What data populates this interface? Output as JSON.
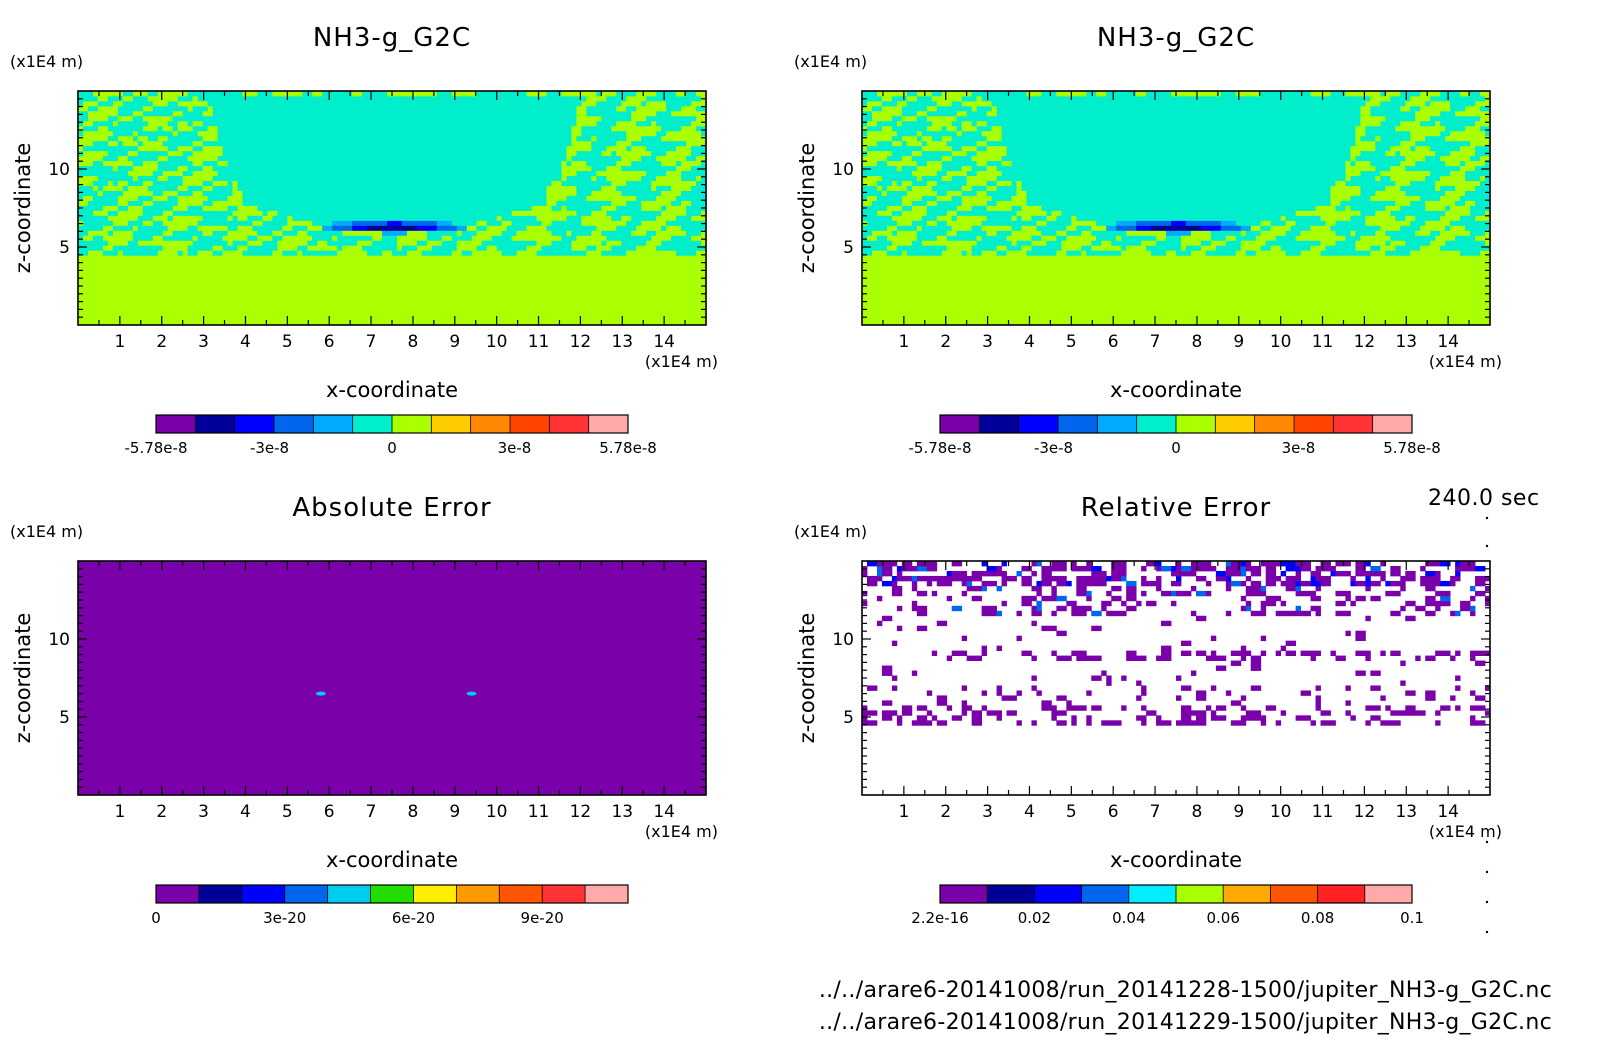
{
  "time_label": "240.0 sec",
  "files": [
    "../../arare6-20141008/run_20141228-1500/jupiter_NH3-g_G2C.nc",
    "../../arare6-20141008/run_20141229-1500/jupiter_NH3-g_G2C.nc"
  ],
  "chart_data": [
    {
      "type": "heatmap",
      "title": "NH3-g_G2C",
      "xlabel": "x-coordinate",
      "ylabel": "z-coordinate",
      "x_unit": "(x1E4 m)",
      "y_unit": "(x1E4 m)",
      "xlim": [
        0,
        15
      ],
      "ylim": [
        0,
        15
      ],
      "x_ticks": [
        "1",
        "2",
        "3",
        "4",
        "5",
        "6",
        "7",
        "8",
        "9",
        "10",
        "11",
        "12",
        "13",
        "14"
      ],
      "y_ticks": [
        "5",
        "10"
      ],
      "field": "nh3",
      "colorbar": {
        "colors": [
          "#7a00aa",
          "#000099",
          "#0000ff",
          "#0066ee",
          "#00aaff",
          "#00eecc",
          "#aaff00",
          "#ffcc00",
          "#ff8800",
          "#ff4400",
          "#ff3333",
          "#ffaaaa"
        ],
        "tick_labels": [
          "-5.78e-8",
          "-3e-8",
          "0",
          "3e-8",
          "5.78e-8"
        ],
        "range": [
          -5.78e-08,
          5.78e-08
        ]
      },
      "description_values": {
        "background_levels": [
          "0 to 1.2e-8 (yellow-green)",
          "-1.2e-8 to 0 (cyan)"
        ],
        "minimum_near": {
          "x": 7.5,
          "z": 6.3,
          "value": -5.78e-08
        }
      }
    },
    {
      "type": "heatmap",
      "title": "NH3-g_G2C",
      "xlabel": "x-coordinate",
      "ylabel": "z-coordinate",
      "x_unit": "(x1E4 m)",
      "y_unit": "(x1E4 m)",
      "xlim": [
        0,
        15
      ],
      "ylim": [
        0,
        15
      ],
      "x_ticks": [
        "1",
        "2",
        "3",
        "4",
        "5",
        "6",
        "7",
        "8",
        "9",
        "10",
        "11",
        "12",
        "13",
        "14"
      ],
      "y_ticks": [
        "5",
        "10"
      ],
      "field": "nh3",
      "colorbar": {
        "colors": [
          "#7a00aa",
          "#000099",
          "#0000ff",
          "#0066ee",
          "#00aaff",
          "#00eecc",
          "#aaff00",
          "#ffcc00",
          "#ff8800",
          "#ff4400",
          "#ff3333",
          "#ffaaaa"
        ],
        "tick_labels": [
          "-5.78e-8",
          "-3e-8",
          "0",
          "3e-8",
          "5.78e-8"
        ],
        "range": [
          -5.78e-08,
          5.78e-08
        ]
      }
    },
    {
      "type": "heatmap",
      "title": "Absolute Error",
      "xlabel": "x-coordinate",
      "ylabel": "z-coordinate",
      "x_unit": "(x1E4 m)",
      "y_unit": "(x1E4 m)",
      "xlim": [
        0,
        15
      ],
      "ylim": [
        0,
        15
      ],
      "x_ticks": [
        "1",
        "2",
        "3",
        "4",
        "5",
        "6",
        "7",
        "8",
        "9",
        "10",
        "11",
        "12",
        "13",
        "14"
      ],
      "y_ticks": [
        "5",
        "10"
      ],
      "field": "abs",
      "colorbar": {
        "colors": [
          "#7a00aa",
          "#000099",
          "#0000ff",
          "#0066ee",
          "#00ccee",
          "#22dd00",
          "#ffee00",
          "#ff9900",
          "#ff5500",
          "#ff3333",
          "#ffaaaa"
        ],
        "tick_labels": [
          "0",
          "3e-20",
          "6e-20",
          "9e-20"
        ],
        "range": [
          0,
          1.1e-19
        ]
      },
      "hotspots": [
        {
          "x": 5.8,
          "z": 6.5
        },
        {
          "x": 9.4,
          "z": 6.5
        }
      ]
    },
    {
      "type": "heatmap",
      "title": "Relative Error",
      "xlabel": "x-coordinate",
      "ylabel": "z-coordinate",
      "x_unit": "(x1E4 m)",
      "y_unit": "(x1E4 m)",
      "xlim": [
        0,
        15
      ],
      "ylim": [
        0,
        15
      ],
      "x_ticks": [
        "1",
        "2",
        "3",
        "4",
        "5",
        "6",
        "7",
        "8",
        "9",
        "10",
        "11",
        "12",
        "13",
        "14"
      ],
      "y_ticks": [
        "5",
        "10"
      ],
      "field": "rel",
      "colorbar": {
        "colors": [
          "#7a00aa",
          "#000099",
          "#0000ff",
          "#0066ee",
          "#00eeff",
          "#aaff00",
          "#ffaa00",
          "#ff5500",
          "#ff2222",
          "#ffaaaa"
        ],
        "tick_labels": [
          "2.2e-16",
          "0.02",
          "0.04",
          "0.06",
          "0.08",
          "0.1"
        ],
        "range": [
          2.2e-16,
          0.1
        ]
      }
    }
  ]
}
